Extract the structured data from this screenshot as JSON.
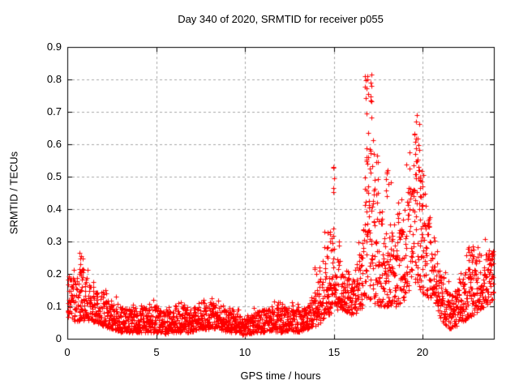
{
  "chart_data": {
    "type": "scatter",
    "title": "Day 340 of 2020, SRMTID for receiver p055",
    "xlabel": "GPS time / hours",
    "ylabel": "SRMTID / TECUs",
    "xlim": [
      0,
      24
    ],
    "ylim": [
      0,
      0.9
    ],
    "xticks": [
      0,
      5,
      10,
      15,
      20
    ],
    "yticks": [
      0,
      0.1,
      0.2,
      0.3,
      0.4,
      0.5,
      0.6,
      0.7,
      0.8,
      0.9
    ],
    "grid": true,
    "legend": null,
    "series": [
      {
        "name": "SRMTID",
        "marker": "plus",
        "color": "#ff0000",
        "description": "30-second SRMTID scatter: dense quiet band ~0.02-0.09 TECU hours 3-13.5, morning peak 0.26 near 0.8h, dip to ~0.01 at 10h, activity rising after 14h with spikes 0.56 at 15h, max 0.83 near 17h, 0.71 near 19.6h, 0.53 near 20h, decay to 0.05-0.2 hours 21-22, final rise to ~0.28 by 24h"
      }
    ],
    "point_generation": {
      "seed": 1340,
      "base_count": 2600,
      "envelope_hours_step": 0.5,
      "envelope_lo": [
        0.07,
        0.05,
        0.06,
        0.05,
        0.04,
        0.03,
        0.02,
        0.02,
        0.02,
        0.02,
        0.02,
        0.015,
        0.02,
        0.02,
        0.02,
        0.03,
        0.03,
        0.03,
        0.02,
        0.02,
        0.01,
        0.02,
        0.02,
        0.025,
        0.02,
        0.025,
        0.02,
        0.03,
        0.04,
        0.06,
        0.09,
        0.09,
        0.07,
        0.09,
        0.12,
        0.1,
        0.1,
        0.1,
        0.12,
        0.18,
        0.14,
        0.12,
        0.06,
        0.03,
        0.04,
        0.06,
        0.08,
        0.1,
        0.12
      ],
      "envelope_hi": [
        0.21,
        0.17,
        0.2,
        0.15,
        0.14,
        0.12,
        0.1,
        0.09,
        0.09,
        0.1,
        0.1,
        0.085,
        0.09,
        0.1,
        0.09,
        0.1,
        0.11,
        0.1,
        0.1,
        0.08,
        0.065,
        0.08,
        0.09,
        0.1,
        0.095,
        0.1,
        0.09,
        0.1,
        0.16,
        0.22,
        0.3,
        0.22,
        0.2,
        0.28,
        0.55,
        0.42,
        0.36,
        0.38,
        0.45,
        0.55,
        0.45,
        0.35,
        0.22,
        0.14,
        0.16,
        0.24,
        0.26,
        0.27,
        0.28
      ],
      "spikes": [
        {
          "hour": 0.8,
          "halfwidth": 0.15,
          "ymax": 0.27,
          "count": 10
        },
        {
          "hour": 14.05,
          "halfwidth": 0.2,
          "ymax": 0.25,
          "count": 6
        },
        {
          "hour": 14.6,
          "halfwidth": 0.2,
          "ymax": 0.34,
          "count": 10
        },
        {
          "hour": 15.0,
          "halfwidth": 0.1,
          "ymax": 0.56,
          "count": 7
        },
        {
          "hour": 16.95,
          "halfwidth": 0.2,
          "ymax": 0.83,
          "count": 22
        },
        {
          "hour": 17.15,
          "halfwidth": 0.35,
          "ymax": 0.62,
          "count": 12
        },
        {
          "hour": 18.05,
          "halfwidth": 0.15,
          "ymax": 0.52,
          "count": 8
        },
        {
          "hour": 19.65,
          "halfwidth": 0.15,
          "ymax": 0.71,
          "count": 14
        },
        {
          "hour": 19.95,
          "halfwidth": 0.12,
          "ymax": 0.53,
          "count": 8
        },
        {
          "hour": 22.7,
          "halfwidth": 0.2,
          "ymax": 0.3,
          "count": 8
        }
      ]
    }
  },
  "colors": {
    "marker": "#ff0000",
    "grid": "#a8a8a8",
    "axis": "#000000",
    "background": "#ffffff",
    "text": "#000000"
  }
}
